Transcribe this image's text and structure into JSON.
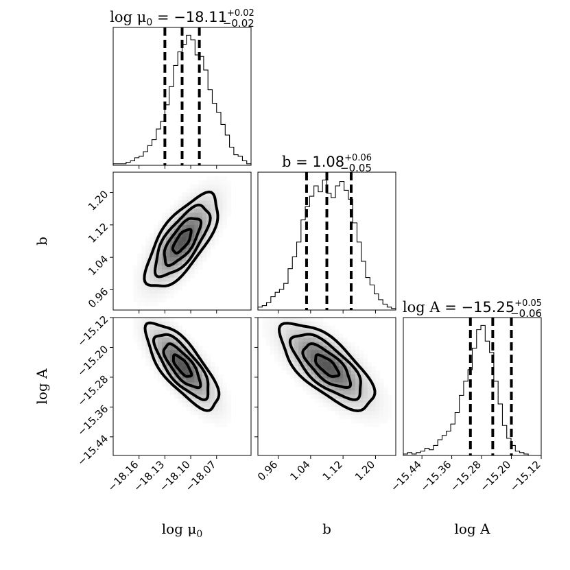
{
  "chart_data": {
    "type": "corner",
    "parameters": [
      {
        "key": "log_mu0",
        "label": "log μ",
        "label_sub": "0",
        "title_prefix": "log μ",
        "title_sub": "0",
        "title_value": " = −18.11",
        "title_err_plus": "+0.02",
        "title_err_minus": "−0.02",
        "median": -18.11,
        "q16": -18.13,
        "q84": -18.09,
        "range": [
          -18.19,
          -18.03
        ],
        "ticks": [
          -18.16,
          -18.13,
          -18.1,
          -18.07
        ],
        "tick_labels": [
          "−18.16",
          "−18.13",
          "−18.10",
          "−18.07"
        ],
        "hist": [
          1,
          1,
          1,
          2,
          3,
          5,
          6,
          9,
          13,
          17,
          24,
          29,
          40,
          52,
          66,
          75,
          80,
          86,
          83,
          73,
          72,
          63,
          50,
          41,
          35,
          27,
          20,
          12,
          7,
          6,
          3,
          1
        ]
      },
      {
        "key": "b",
        "label": "b",
        "label_sub": "",
        "title_prefix": "b",
        "title_sub": "",
        "title_value": " = 1.08",
        "title_err_plus": "+0.06",
        "title_err_minus": "−0.05",
        "median": 1.08,
        "q16": 1.03,
        "q84": 1.14,
        "range": [
          0.91,
          1.25
        ],
        "ticks": [
          0.96,
          1.04,
          1.12,
          1.2
        ],
        "tick_labels": [
          "0.96",
          "1.04",
          "1.12",
          "1.20"
        ],
        "hist": [
          2,
          3,
          5,
          9,
          12,
          14,
          18,
          28,
          36,
          46,
          61,
          70,
          77,
          84,
          80,
          88,
          79,
          76,
          84,
          87,
          81,
          75,
          59,
          46,
          33,
          22,
          17,
          11,
          7,
          4,
          2,
          1
        ]
      },
      {
        "key": "log_A",
        "label": "log A",
        "label_sub": "",
        "title_prefix": "log A",
        "title_sub": "",
        "title_value": " = −15.25",
        "title_err_plus": "+0.05",
        "title_err_minus": "−0.06",
        "median": -15.25,
        "q16": -15.31,
        "q84": -15.2,
        "range": [
          -15.49,
          -15.12
        ],
        "ticks": [
          -15.44,
          -15.36,
          -15.28,
          -15.2,
          -15.12
        ],
        "tick_labels": [
          "−15.44",
          "−15.36",
          "−15.28",
          "−15.20",
          "−15.12"
        ],
        "hist": [
          1,
          2,
          1,
          2,
          3,
          5,
          4,
          7,
          11,
          14,
          17,
          22,
          30,
          42,
          52,
          60,
          75,
          88,
          91,
          80,
          72,
          52,
          36,
          21,
          12,
          7,
          3,
          2,
          1,
          0,
          0,
          0
        ]
      }
    ],
    "pairs": [
      {
        "row": 1,
        "col": 0,
        "correlation": 0.7
      },
      {
        "row": 2,
        "col": 0,
        "correlation": -0.75
      },
      {
        "row": 2,
        "col": 1,
        "correlation": -0.7
      }
    ],
    "grid": false
  }
}
